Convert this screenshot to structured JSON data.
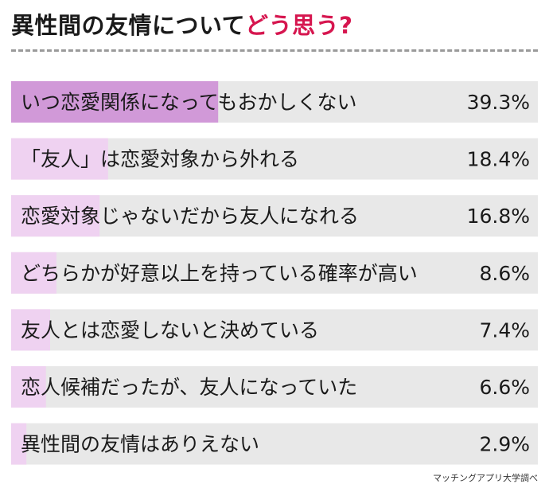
{
  "title": {
    "main": "異性間の友情について",
    "accent": "どう思う?"
  },
  "source": "マッチングアプリ大学調べ",
  "colors": {
    "track": "#e8e8e8",
    "bar_top": "#d199d8",
    "bar": "#efd2f1",
    "title_accent": "#d6164f",
    "text": "#1a1a1a"
  },
  "chart_data": {
    "type": "bar",
    "orientation": "horizontal",
    "unit": "%",
    "xlim": [
      0,
      100
    ],
    "categories": [
      "いつ恋愛関係になってもおかしくない",
      "「友人」は恋愛対象から外れる",
      "恋愛対象じゃないだから友人になれる",
      "どちらかが好意以上を持っている確率が高い",
      "友人とは恋愛しないと決めている",
      "恋人候補だったが、友人になっていた",
      "異性間の友情はありえない"
    ],
    "values": [
      39.3,
      18.4,
      16.8,
      8.6,
      7.4,
      6.6,
      2.9
    ],
    "value_labels": [
      "39.3%",
      "18.4%",
      "16.8%",
      "8.6%",
      "7.4%",
      "6.6%",
      "2.9%"
    ]
  }
}
